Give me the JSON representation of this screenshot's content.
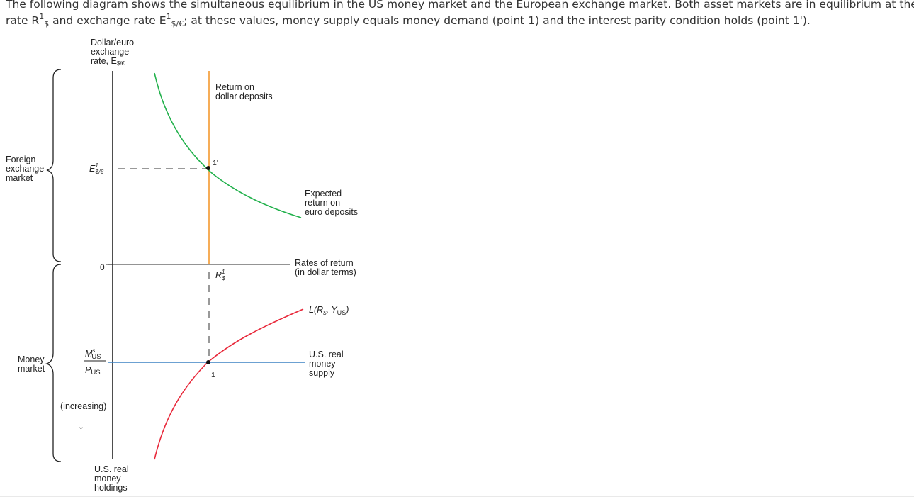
{
  "prompt": {
    "line1": "The following diagram shows the simultaneous equilibrium in the US money market and the European exchange market. Both asset markets are in equilibrium at the interest",
    "line2_a": "rate R",
    "line2_sup1": "1",
    "line2_sub1": "$",
    "line2_b": " and exchange rate E",
    "line2_sup2": "1",
    "line2_sub2": "$/€",
    "line2_c": "; at these values, money supply equals money demand (point 1) and the interest parity condition holds (point 1')."
  },
  "diagram": {
    "y_axis_title": [
      "Dollar/euro",
      "exchange",
      "rate, E"
    ],
    "y_axis_title_sub": "$/€",
    "foreign_exchange_market_label": [
      "Foreign",
      "exchange",
      "market"
    ],
    "money_market_label": [
      "Money",
      "market"
    ],
    "e1_label": "E",
    "e1_sup": "1",
    "e1_sub": "$/€",
    "zero_label": "0",
    "ms_num": "M",
    "ms_num_sup": "s",
    "ms_num_sub": "US",
    "ms_den": "P",
    "ms_den_sub": "US",
    "increasing_label": "(increasing)",
    "arrow_down": "↓",
    "bottom_axis_title": [
      "U.S. real",
      "money",
      "holdings"
    ],
    "return_dollar_label": [
      "Return on",
      "dollar deposits"
    ],
    "expected_return_label": [
      "Expected",
      "return on",
      "euro deposits"
    ],
    "rates_of_return_label": [
      "Rates of return",
      "(in dollar terms)"
    ],
    "r1_label": "R",
    "r1_sup": "1",
    "r1_sub": "$",
    "point1_prime_label": "1'",
    "point1_label": "1",
    "money_demand_label": "L(R",
    "money_demand_sub1": "$",
    "money_demand_mid": ", Y",
    "money_demand_sub2": "US",
    "money_demand_end": ")",
    "money_supply_label": [
      "U.S. real",
      "money",
      "supply"
    ]
  },
  "colors": {
    "dollar_return": "#f5a445",
    "euro_return": "#22b14c",
    "money_demand": "#e8283a",
    "money_supply": "#3b82c4",
    "axis": "#222222"
  }
}
